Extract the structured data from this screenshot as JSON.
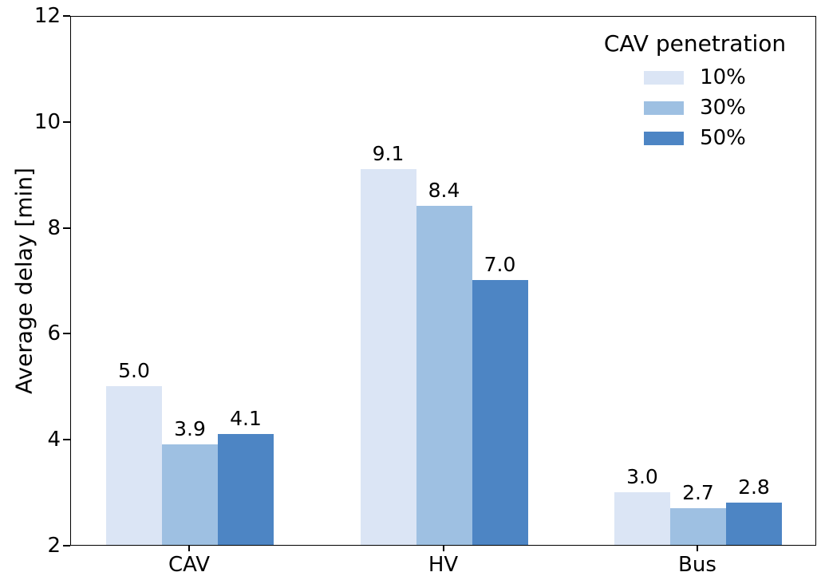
{
  "chart_data": {
    "type": "bar",
    "title": "",
    "xlabel": "",
    "ylabel": "Average delay [min]",
    "categories": [
      "CAV",
      "HV",
      "Bus"
    ],
    "series": [
      {
        "name": "10%",
        "color": "#dbe5f5",
        "values": [
          5.0,
          9.1,
          3.0
        ]
      },
      {
        "name": "30%",
        "color": "#9ec0e2",
        "values": [
          3.9,
          8.4,
          2.7
        ]
      },
      {
        "name": "50%",
        "color": "#4d85c4",
        "values": [
          4.1,
          7.0,
          2.8
        ]
      }
    ],
    "ylim": [
      2,
      12
    ],
    "yticks": [
      2,
      4,
      6,
      8,
      10,
      12
    ],
    "legend_title": "CAV penetration",
    "legend_position": "upper right",
    "grid": false,
    "bar_value_labels": true,
    "bar_value_format": "one_decimal",
    "axis_color": "#000000",
    "background_color": "#ffffff"
  }
}
